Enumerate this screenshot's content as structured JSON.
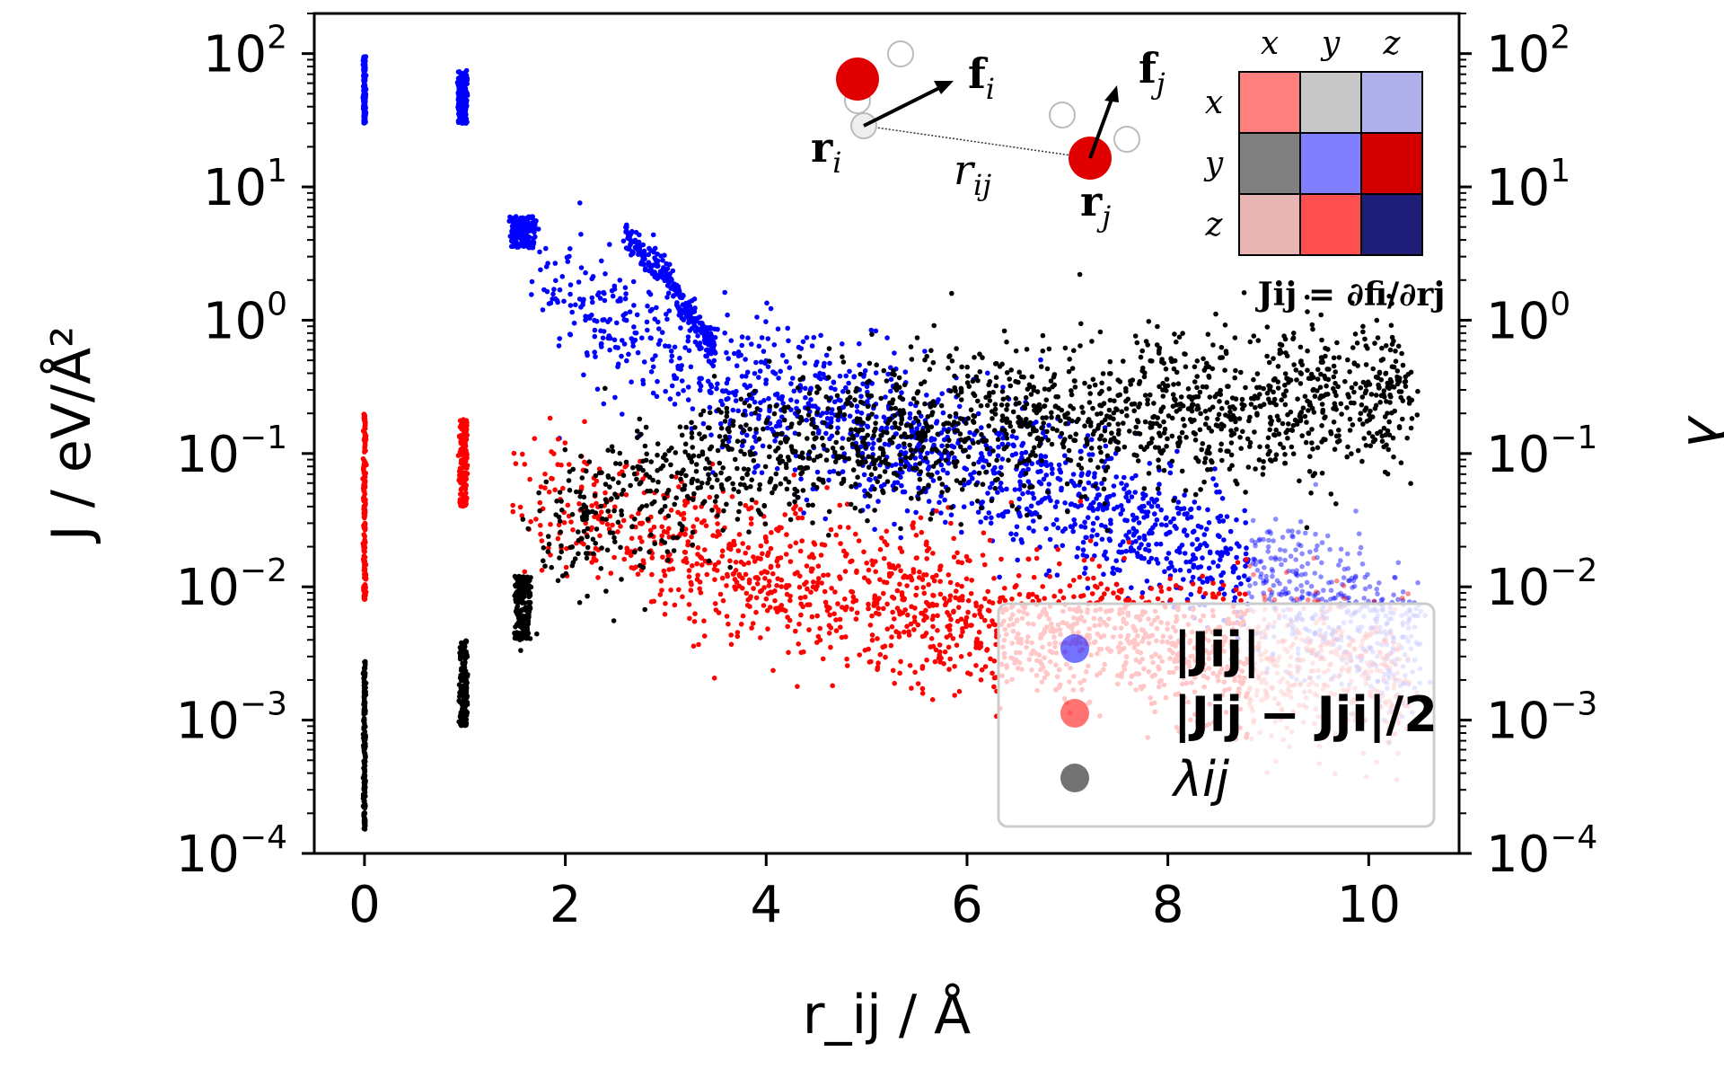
{
  "chart_data": {
    "type": "scatter",
    "title": "",
    "xlabel": "r_ij / Å",
    "ylabel": "J / eV/Å²",
    "ylabel_right": "λ",
    "xlim": [
      -0.5,
      10.9
    ],
    "ylim": [
      0.0001,
      200
    ],
    "yscale": "log",
    "xticks": [
      0,
      2,
      4,
      6,
      8,
      10
    ],
    "xtick_labels": [
      "0",
      "2",
      "4",
      "6",
      "8",
      "10"
    ],
    "yticks": [
      0.0001,
      0.001,
      0.01,
      0.1,
      1,
      10,
      100
    ],
    "ytick_bases": [
      "10",
      "10",
      "10",
      "10",
      "10",
      "10",
      "10"
    ],
    "ytick_exponents": [
      "−4",
      "−3",
      "−2",
      "−1",
      "0",
      "1",
      "2"
    ],
    "grid": false,
    "legend_placement": "lower-right",
    "series": [
      {
        "name": "|J_ij|",
        "legend_label": "|Jij|",
        "color": "#0000ff",
        "clusters": [
          {
            "x": [
              0.0,
              0.0
            ],
            "y": [
              30,
              95
            ]
          },
          {
            "x": [
              0.93,
              1.02
            ],
            "y": [
              30,
              75
            ]
          },
          {
            "x": [
              1.45,
              1.7
            ],
            "y": [
              3.5,
              6
            ]
          }
        ],
        "trend": [
          {
            "x": 1.7,
            "y": 1.8
          },
          {
            "x": 3.0,
            "y": 0.6
          },
          {
            "x": 4.0,
            "y": 0.25
          },
          {
            "x": 5.0,
            "y": 0.15
          },
          {
            "x": 6.0,
            "y": 0.09
          },
          {
            "x": 7.0,
            "y": 0.05
          },
          {
            "x": 8.0,
            "y": 0.025
          },
          {
            "x": 9.0,
            "y": 0.01
          },
          {
            "x": 10.0,
            "y": 0.005
          },
          {
            "x": 10.5,
            "y": 0.004
          }
        ],
        "secondary_branch": [
          {
            "x": 2.6,
            "y": 4.5
          },
          {
            "x": 3.0,
            "y": 2.0
          },
          {
            "x": 3.5,
            "y": 0.6
          }
        ]
      },
      {
        "name": "|J_ij − J_ji|/2",
        "legend_label": "|Jij − Jji|/2",
        "color": "#ff0000",
        "clusters": [
          {
            "x": [
              0.0,
              0.0
            ],
            "y": [
              0.008,
              0.2
            ]
          },
          {
            "x": [
              0.95,
              1.02
            ],
            "y": [
              0.04,
              0.18
            ]
          }
        ],
        "trend": [
          {
            "x": 1.5,
            "y": 0.05
          },
          {
            "x": 2.5,
            "y": 0.03
          },
          {
            "x": 3.5,
            "y": 0.015
          },
          {
            "x": 4.5,
            "y": 0.01
          },
          {
            "x": 5.5,
            "y": 0.007
          },
          {
            "x": 6.5,
            "y": 0.005
          },
          {
            "x": 7.5,
            "y": 0.004
          },
          {
            "x": 8.5,
            "y": 0.003
          },
          {
            "x": 9.5,
            "y": 0.0025
          },
          {
            "x": 10.4,
            "y": 0.002
          }
        ]
      },
      {
        "name": "λ_ij",
        "legend_label": "λij",
        "color": "#000000",
        "clusters": [
          {
            "x": [
              0.0,
              0.0
            ],
            "y": [
              0.00015,
              0.0028
            ]
          },
          {
            "x": [
              0.95,
              1.02
            ],
            "y": [
              0.0009,
              0.004
            ]
          },
          {
            "x": [
              1.5,
              1.65
            ],
            "y": [
              0.004,
              0.012
            ]
          }
        ],
        "trend": [
          {
            "x": 1.7,
            "y": 0.02
          },
          {
            "x": 2.5,
            "y": 0.04
          },
          {
            "x": 3.5,
            "y": 0.08
          },
          {
            "x": 4.5,
            "y": 0.12
          },
          {
            "x": 5.5,
            "y": 0.15
          },
          {
            "x": 6.5,
            "y": 0.18
          },
          {
            "x": 7.5,
            "y": 0.2
          },
          {
            "x": 8.5,
            "y": 0.22
          },
          {
            "x": 9.5,
            "y": 0.25
          },
          {
            "x": 10.4,
            "y": 0.3
          }
        ]
      }
    ]
  },
  "inset": {
    "col_labels": [
      "x",
      "y",
      "z"
    ],
    "row_labels": [
      "x",
      "y",
      "z"
    ],
    "matrix_colors": [
      [
        "#ff7f7f",
        "#c8c8c8",
        "#b0b0ec"
      ],
      [
        "#808080",
        "#7f7fff",
        "#d40000"
      ],
      [
        "#e8b4b4",
        "#ff5050",
        "#1e1e78"
      ]
    ],
    "label_fi": "f",
    "label_fi_sub": "i",
    "label_fj": "f",
    "label_fj_sub": "j",
    "label_ri": "r",
    "label_ri_sub": "i",
    "label_rj": "r",
    "label_rj_sub": "j",
    "label_rij": "r",
    "label_rij_sub": "ij",
    "equation": "Jij = ∂fi/∂rj",
    "oxygen_color": "#e00000",
    "hydrogen_color": "#ffffff"
  }
}
